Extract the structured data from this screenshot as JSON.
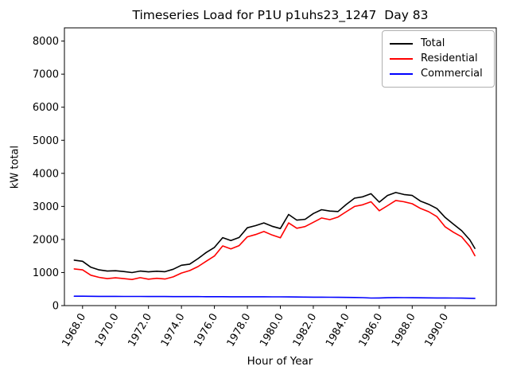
{
  "chart_data": {
    "type": "line",
    "title": "Timeseries Load for P1U p1uhs23_1247  Day 83",
    "xlabel": "Hour of Year",
    "ylabel": "kW total",
    "xlim": [
      1966.9,
      1993.1
    ],
    "ylim": [
      0,
      8400
    ],
    "grid": false,
    "x_ticks": [
      1968,
      1970,
      1972,
      1974,
      1976,
      1978,
      1980,
      1982,
      1984,
      1986,
      1988,
      1990
    ],
    "x_tick_labels": [
      "1968.0",
      "1970.0",
      "1972.0",
      "1974.0",
      "1976.0",
      "1978.0",
      "1980.0",
      "1982.0",
      "1984.0",
      "1986.0",
      "1988.0",
      "1990.0"
    ],
    "y_ticks": [
      0,
      1000,
      2000,
      3000,
      4000,
      5000,
      6000,
      7000,
      8000
    ],
    "y_tick_labels": [
      "0",
      "1000",
      "2000",
      "3000",
      "4000",
      "5000",
      "6000",
      "7000",
      "8000"
    ],
    "legend": {
      "position": "upper right",
      "entries": [
        {
          "label": "Total",
          "color": "#000000"
        },
        {
          "label": "Residential",
          "color": "#ff0000"
        },
        {
          "label": "Commercial",
          "color": "#0000ff"
        }
      ]
    },
    "x": [
      1967.5,
      1968.0,
      1968.5,
      1969.0,
      1969.5,
      1970.0,
      1970.5,
      1971.0,
      1971.5,
      1972.0,
      1972.5,
      1973.0,
      1973.5,
      1974.0,
      1974.5,
      1975.0,
      1975.5,
      1976.0,
      1976.5,
      1977.0,
      1977.5,
      1978.0,
      1978.5,
      1979.0,
      1979.5,
      1980.0,
      1980.5,
      1981.0,
      1981.5,
      1982.0,
      1982.5,
      1983.0,
      1983.5,
      1984.0,
      1984.5,
      1985.0,
      1985.5,
      1986.0,
      1986.5,
      1987.0,
      1987.5,
      1988.0,
      1988.5,
      1989.0,
      1989.5,
      1990.0,
      1990.5,
      1991.0,
      1991.5,
      1991.8
    ],
    "series": [
      {
        "name": "Total",
        "color": "#000000",
        "values": [
          1375,
          1340,
          1160,
          1080,
          1045,
          1055,
          1030,
          1000,
          1045,
          1020,
          1040,
          1025,
          1100,
          1220,
          1255,
          1420,
          1605,
          1760,
          2055,
          1970,
          2060,
          2355,
          2420,
          2500,
          2400,
          2330,
          2755,
          2585,
          2610,
          2785,
          2900,
          2860,
          2845,
          3060,
          3250,
          3290,
          3385,
          3130,
          3330,
          3420,
          3360,
          3330,
          3160,
          3065,
          2935,
          2665,
          2465,
          2265,
          1985,
          1730
        ]
      },
      {
        "name": "Residential",
        "color": "#ff0000",
        "values": [
          1110,
          1080,
          920,
          855,
          815,
          840,
          815,
          790,
          845,
          800,
          825,
          805,
          870,
          985,
          1060,
          1180,
          1340,
          1500,
          1805,
          1715,
          1815,
          2080,
          2150,
          2240,
          2135,
          2050,
          2500,
          2340,
          2390,
          2520,
          2650,
          2600,
          2680,
          2840,
          3000,
          3050,
          3140,
          2870,
          3020,
          3180,
          3140,
          3080,
          2940,
          2840,
          2690,
          2380,
          2220,
          2080,
          1785,
          1510
        ]
      },
      {
        "name": "Commercial",
        "color": "#0000ff",
        "values": [
          285,
          283,
          281,
          280,
          279,
          278,
          277,
          276,
          276,
          275,
          274,
          274,
          273,
          272,
          272,
          271,
          270,
          270,
          269,
          268,
          268,
          267,
          266,
          266,
          265,
          264,
          262,
          260,
          258,
          256,
          254,
          252,
          250,
          248,
          245,
          240,
          228,
          232,
          238,
          242,
          240,
          238,
          236,
          234,
          232,
          230,
          228,
          226,
          222,
          218
        ]
      }
    ]
  }
}
